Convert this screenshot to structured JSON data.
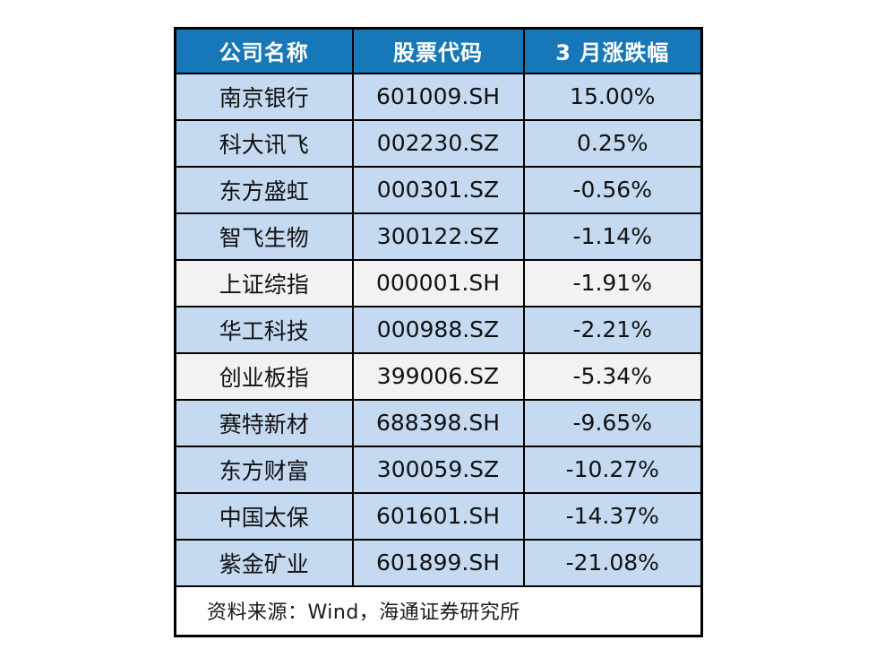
{
  "colors": {
    "header_bg": "#1778b9",
    "header_text": "#ffffff",
    "row_blue": "#c5d9f1",
    "row_gray": "#f2f2f2",
    "border": "#000000",
    "page_bg": "#ffffff"
  },
  "chart_data": {
    "type": "table",
    "columns": [
      "公司名称",
      "股票代码",
      "3 月涨跌幅"
    ],
    "rows": [
      {
        "company": "南京银行",
        "code": "601009.SH",
        "change": "15.00%",
        "highlight": false
      },
      {
        "company": "科大讯飞",
        "code": "002230.SZ",
        "change": "0.25%",
        "highlight": false
      },
      {
        "company": "东方盛虹",
        "code": "000301.SZ",
        "change": "-0.56%",
        "highlight": false
      },
      {
        "company": "智飞生物",
        "code": "300122.SZ",
        "change": "-1.14%",
        "highlight": false
      },
      {
        "company": "上证综指",
        "code": "000001.SH",
        "change": "-1.91%",
        "highlight": true
      },
      {
        "company": "华工科技",
        "code": "000988.SZ",
        "change": "-2.21%",
        "highlight": false
      },
      {
        "company": "创业板指",
        "code": "399006.SZ",
        "change": "-5.34%",
        "highlight": true
      },
      {
        "company": "赛特新材",
        "code": "688398.SH",
        "change": "-9.65%",
        "highlight": false
      },
      {
        "company": "东方财富",
        "code": "300059.SZ",
        "change": "-10.27%",
        "highlight": false
      },
      {
        "company": "中国太保",
        "code": "601601.SH",
        "change": "-14.37%",
        "highlight": false
      },
      {
        "company": "紫金矿业",
        "code": "601899.SH",
        "change": "-21.08%",
        "highlight": false
      }
    ],
    "change_values_pct": [
      15.0,
      0.25,
      -0.56,
      -1.14,
      -1.91,
      -2.21,
      -5.34,
      -9.65,
      -10.27,
      -14.37,
      -21.08
    ],
    "source": "资料来源：Wind，海通证券研究所",
    "legend_position": "none",
    "grid": true
  }
}
